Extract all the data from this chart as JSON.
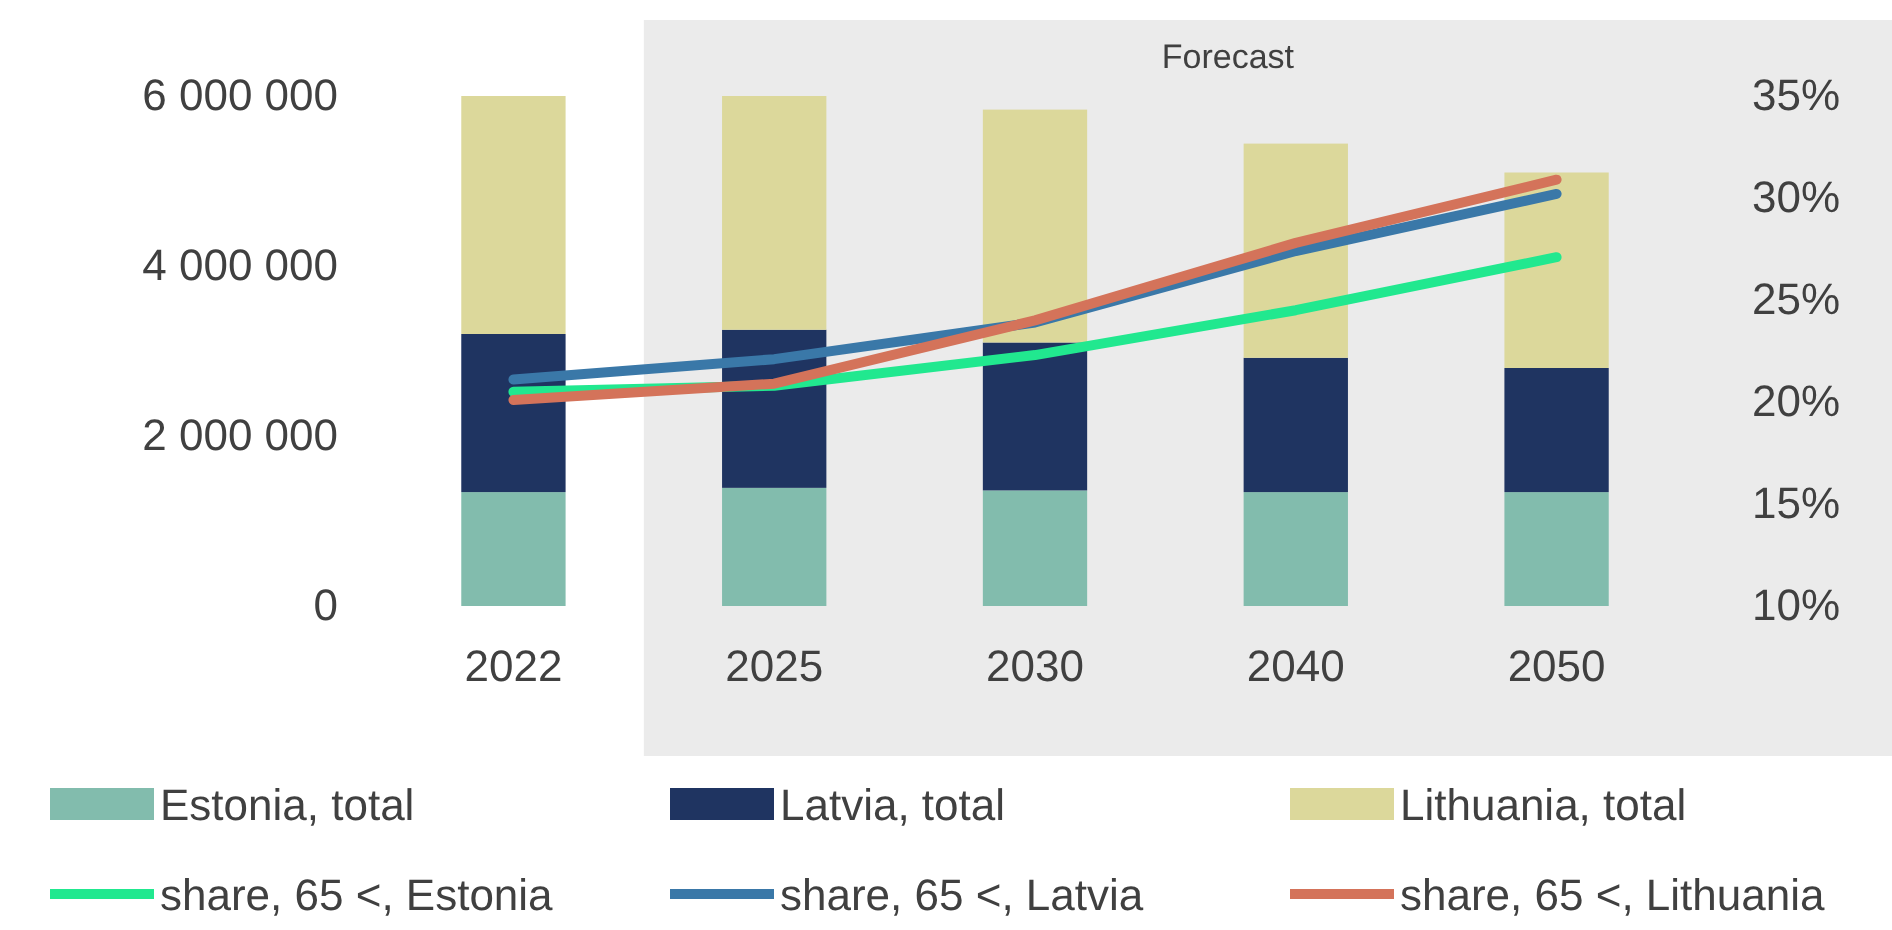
{
  "chart_data": {
    "type": "bar",
    "stacked": true,
    "legend": "bottom",
    "categories": [
      "2022",
      "2025",
      "2030",
      "2040",
      "2050"
    ],
    "ylim": [
      0,
      6000000
    ],
    "yticks": [
      {
        "value": 0,
        "label": "0"
      },
      {
        "value": 2000000,
        "label": "2 000 000"
      },
      {
        "value": 4000000,
        "label": "4 000 000"
      },
      {
        "value": 6000000,
        "label": "6 000 000"
      }
    ],
    "y2lim": [
      10,
      35
    ],
    "y2ticks": [
      {
        "value": 10,
        "label": "10%"
      },
      {
        "value": 15,
        "label": "15%"
      },
      {
        "value": 20,
        "label": "20%"
      },
      {
        "value": 25,
        "label": "25%"
      },
      {
        "value": 30,
        "label": "30%"
      },
      {
        "value": 35,
        "label": "35%"
      }
    ],
    "bands": [
      {
        "axis": "x",
        "from": "2025",
        "to": "2050",
        "label": "Forecast",
        "color": "#ebebeb"
      }
    ],
    "series": [
      {
        "name": "Estonia, total",
        "color": "#82bcad",
        "values": [
          1340000,
          1390000,
          1360000,
          1340000,
          1340000
        ]
      },
      {
        "name": "Latvia, total",
        "color": "#1f3461",
        "values": [
          1860000,
          1860000,
          1740000,
          1580000,
          1460000
        ]
      },
      {
        "name": "Lithuania, total",
        "color": "#dcd89b",
        "values": [
          2800000,
          2750000,
          2740000,
          2520000,
          2300000
        ]
      },
      {
        "name": "share, 65 <, Estonia",
        "type": "line",
        "axis": "y2",
        "color": "#21e88f",
        "values": [
          20.5,
          20.8,
          22.3,
          24.5,
          27.1
        ]
      },
      {
        "name": "share, 65 <, Latvia",
        "type": "line",
        "axis": "y2",
        "color": "#3a78a8",
        "values": [
          21.1,
          22.1,
          23.9,
          27.4,
          30.2
        ]
      },
      {
        "name": "share, 65 <, Lithuania",
        "type": "line",
        "axis": "y2",
        "color": "#d4735a",
        "values": [
          20.1,
          20.9,
          24.0,
          27.8,
          30.9
        ]
      }
    ]
  }
}
